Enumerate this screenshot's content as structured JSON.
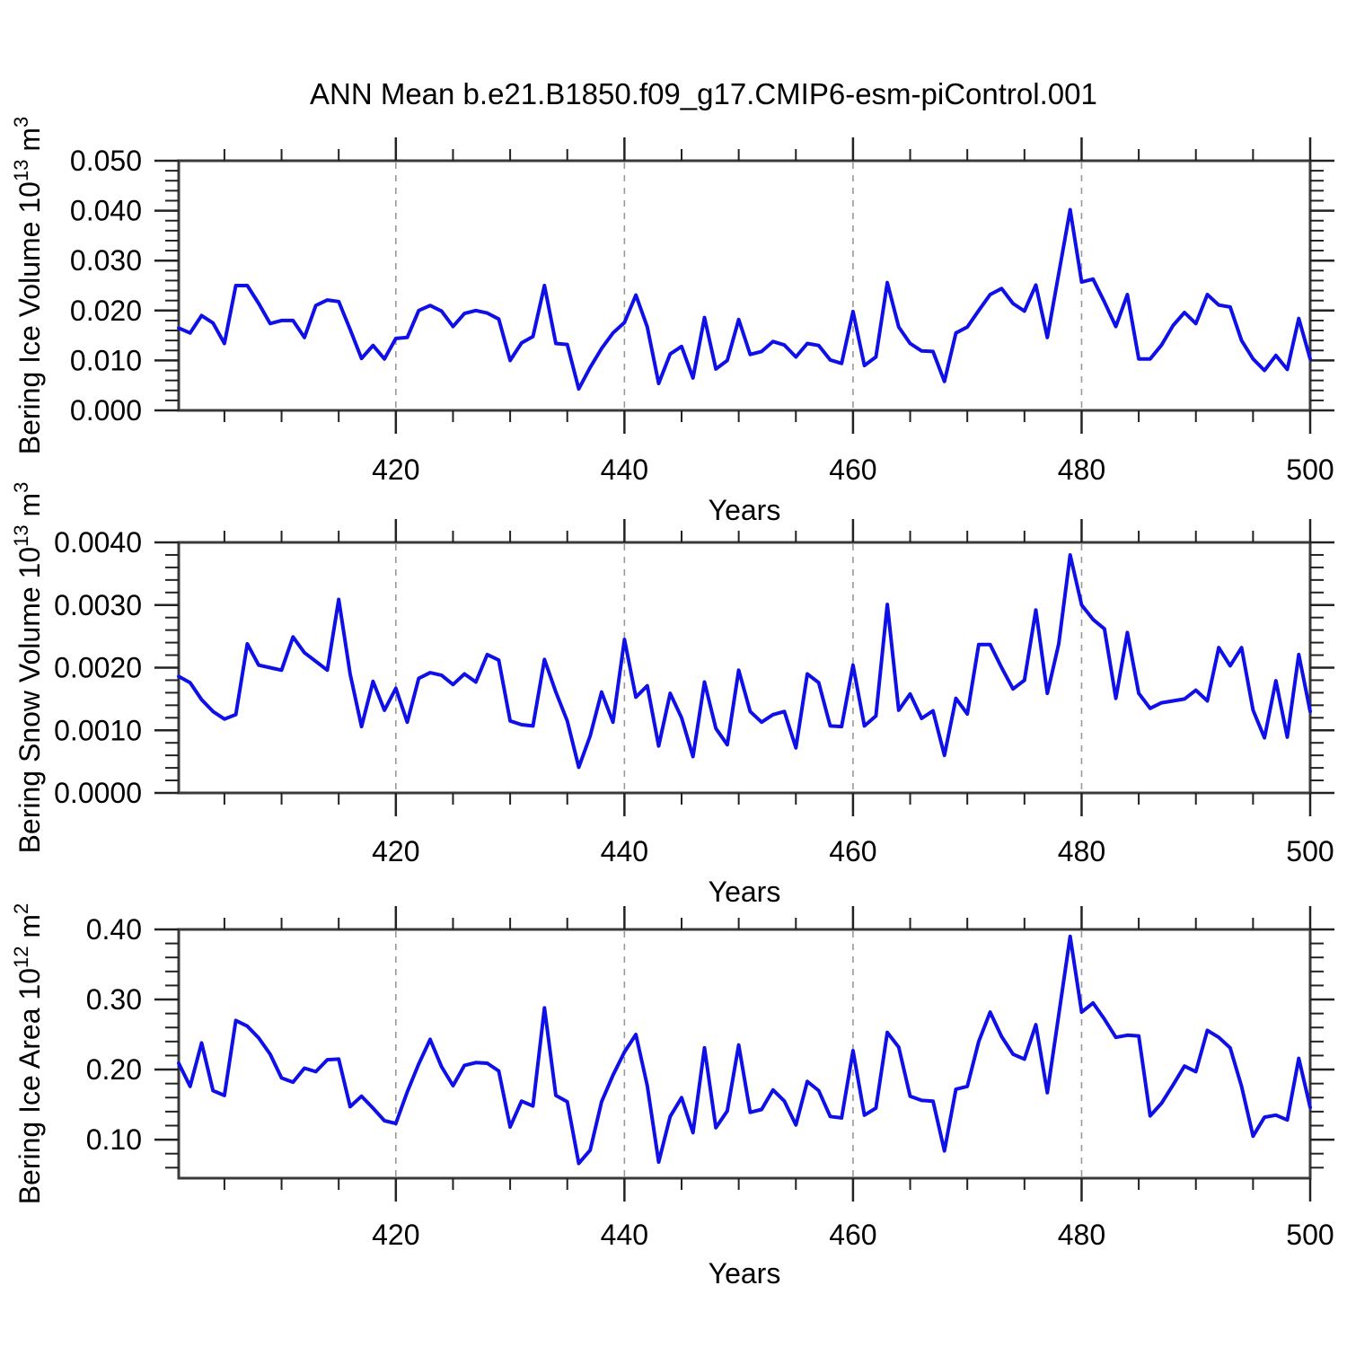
{
  "title": "ANN Mean b.e21.B1850.f09_g17.CMIP6-esm-piControl.001",
  "xlabel": "Years",
  "colors": {
    "line": "#0f0fe8",
    "grid": "#999999",
    "frame": "#3a3a3a",
    "tick": "#222222",
    "text": "#000000",
    "background": "#ffffff"
  },
  "x_axis": {
    "start": 401,
    "end": 500,
    "major_ticks": [
      420,
      440,
      460,
      480,
      500
    ],
    "minor_tick_step": 5,
    "gridlines": [
      420,
      440,
      460,
      480
    ]
  },
  "chart_data": [
    {
      "id": "ice-volume",
      "type": "line",
      "ylabel": {
        "text": "Bering Ice Volume 10",
        "sup": "13",
        "unit": " m",
        "unit_sup": "3"
      },
      "xlabel": "Years",
      "ylim": [
        0,
        0.05
      ],
      "ytick_values": [
        0,
        0.01,
        0.02,
        0.03,
        0.04,
        0.05
      ],
      "ytick_labels": [
        "0.000",
        "0.010",
        "0.020",
        "0.030",
        "0.040",
        "0.050"
      ],
      "minor_tick_step": 0.002,
      "x_start": 401,
      "values": [
        0.0165,
        0.0155,
        0.019,
        0.0175,
        0.0134,
        0.025,
        0.025,
        0.0214,
        0.0174,
        0.018,
        0.018,
        0.0146,
        0.021,
        0.0221,
        0.0218,
        0.0162,
        0.0104,
        0.013,
        0.0103,
        0.0144,
        0.0146,
        0.02,
        0.021,
        0.0199,
        0.0168,
        0.0194,
        0.02,
        0.0195,
        0.0183,
        0.01,
        0.0135,
        0.0148,
        0.025,
        0.0134,
        0.0132,
        0.0043,
        0.0086,
        0.0124,
        0.0155,
        0.0176,
        0.0231,
        0.0167,
        0.0054,
        0.0113,
        0.0128,
        0.0065,
        0.0186,
        0.0083,
        0.01,
        0.0182,
        0.0112,
        0.0118,
        0.0138,
        0.0131,
        0.0107,
        0.0134,
        0.013,
        0.0101,
        0.0094,
        0.0198,
        0.009,
        0.0107,
        0.0256,
        0.0167,
        0.0134,
        0.0119,
        0.0118,
        0.0058,
        0.0155,
        0.0167,
        0.02,
        0.0232,
        0.0244,
        0.0214,
        0.0199,
        0.0251,
        0.0146,
        0.0274,
        0.0402,
        0.0257,
        0.0263,
        0.0217,
        0.0168,
        0.0232,
        0.0103,
        0.0103,
        0.0131,
        0.017,
        0.0196,
        0.0174,
        0.0232,
        0.0211,
        0.0207,
        0.014,
        0.0103,
        0.008,
        0.011,
        0.0082,
        0.0184,
        0.0103
      ]
    },
    {
      "id": "snow-volume",
      "type": "line",
      "ylabel": {
        "text": "Bering Snow Volume 10",
        "sup": "13",
        "unit": " m",
        "unit_sup": "3"
      },
      "xlabel": "Years",
      "ylim": [
        0,
        0.004
      ],
      "ytick_values": [
        0,
        0.001,
        0.002,
        0.003,
        0.004
      ],
      "ytick_labels": [
        "0.0000",
        "0.0010",
        "0.0020",
        "0.0030",
        "0.0040"
      ],
      "minor_tick_step": 0.0002,
      "x_start": 401,
      "values": [
        0.00186,
        0.00176,
        0.00149,
        0.0013,
        0.00118,
        0.00125,
        0.00238,
        0.00204,
        0.002,
        0.00196,
        0.00249,
        0.00224,
        0.0021,
        0.00196,
        0.00309,
        0.0019,
        0.00106,
        0.00178,
        0.00132,
        0.00167,
        0.00113,
        0.00183,
        0.00192,
        0.00188,
        0.00173,
        0.0019,
        0.00177,
        0.00221,
        0.00212,
        0.00115,
        0.00109,
        0.00107,
        0.00213,
        0.00161,
        0.00115,
        0.00041,
        0.00091,
        0.00161,
        0.00113,
        0.00245,
        0.00153,
        0.00171,
        0.00075,
        0.00159,
        0.0012,
        0.00058,
        0.00177,
        0.00103,
        0.00077,
        0.00196,
        0.0013,
        0.00113,
        0.00125,
        0.0013,
        0.00072,
        0.0019,
        0.00176,
        0.00107,
        0.00106,
        0.00204,
        0.00107,
        0.00123,
        0.00301,
        0.00132,
        0.00158,
        0.00119,
        0.00131,
        0.0006,
        0.00151,
        0.00126,
        0.00237,
        0.00237,
        0.002,
        0.00166,
        0.0018,
        0.00292,
        0.00159,
        0.00238,
        0.0038,
        0.003,
        0.00277,
        0.00262,
        0.00151,
        0.00256,
        0.00159,
        0.00135,
        0.00144,
        0.00147,
        0.0015,
        0.00164,
        0.00147,
        0.00232,
        0.00203,
        0.00232,
        0.00132,
        0.00088,
        0.00179,
        0.00089,
        0.00221,
        0.0013
      ]
    },
    {
      "id": "ice-area",
      "type": "line",
      "ylabel": {
        "text": "Bering Ice Area 10",
        "sup": "12",
        "unit": " m",
        "unit_sup": "2"
      },
      "xlabel": "Years",
      "ylim": [
        0.045,
        0.4
      ],
      "ytick_values": [
        0.1,
        0.2,
        0.3,
        0.4
      ],
      "ytick_labels": [
        "0.10",
        "0.20",
        "0.30",
        "0.40"
      ],
      "minor_tick_step": 0.02,
      "x_start": 401,
      "values": [
        0.209,
        0.176,
        0.238,
        0.17,
        0.163,
        0.27,
        0.262,
        0.245,
        0.222,
        0.188,
        0.182,
        0.202,
        0.197,
        0.214,
        0.215,
        0.147,
        0.162,
        0.145,
        0.127,
        0.123,
        0.168,
        0.208,
        0.243,
        0.204,
        0.177,
        0.206,
        0.21,
        0.209,
        0.198,
        0.118,
        0.155,
        0.148,
        0.288,
        0.163,
        0.154,
        0.066,
        0.085,
        0.154,
        0.192,
        0.225,
        0.25,
        0.177,
        0.068,
        0.133,
        0.16,
        0.11,
        0.231,
        0.117,
        0.141,
        0.235,
        0.139,
        0.143,
        0.171,
        0.155,
        0.121,
        0.183,
        0.17,
        0.133,
        0.131,
        0.227,
        0.135,
        0.145,
        0.253,
        0.232,
        0.162,
        0.156,
        0.155,
        0.084,
        0.172,
        0.176,
        0.24,
        0.282,
        0.247,
        0.222,
        0.215,
        0.264,
        0.167,
        0.278,
        0.39,
        0.282,
        0.295,
        0.272,
        0.246,
        0.249,
        0.248,
        0.134,
        0.152,
        0.178,
        0.205,
        0.197,
        0.256,
        0.246,
        0.231,
        0.176,
        0.105,
        0.132,
        0.135,
        0.128,
        0.216,
        0.146
      ]
    }
  ]
}
